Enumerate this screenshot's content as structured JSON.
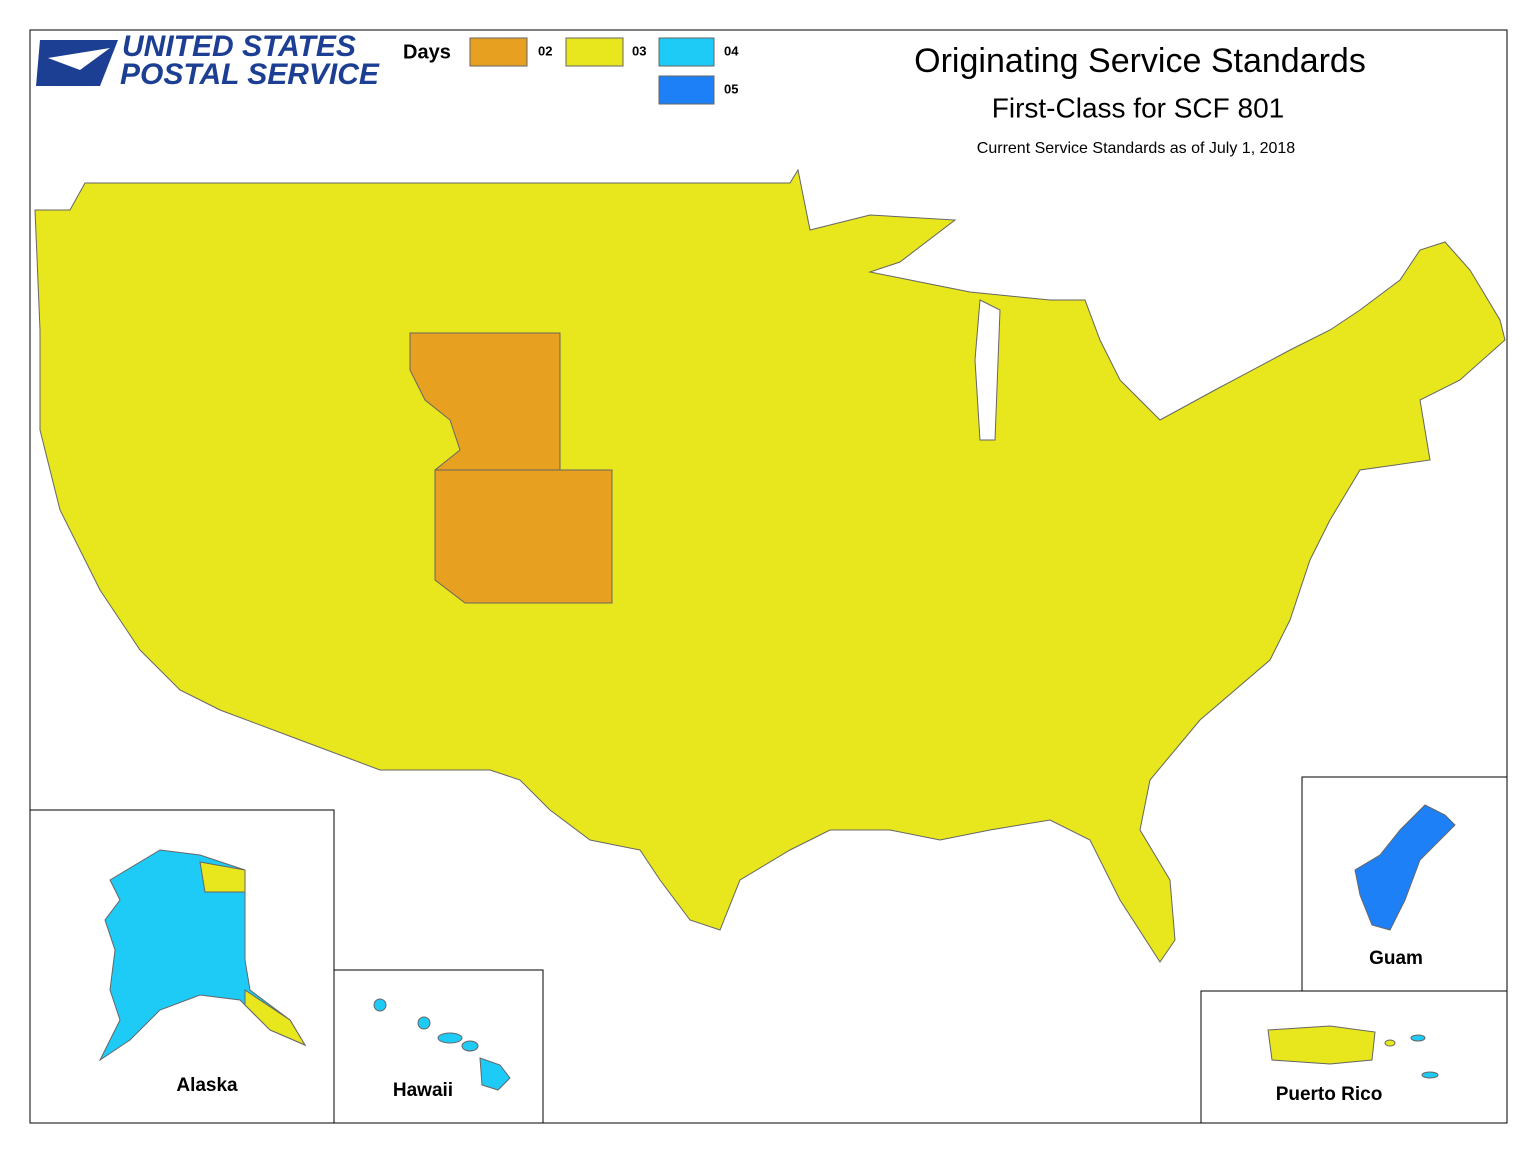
{
  "logo": {
    "line1": "UNITED STATES",
    "line2": "POSTAL SERVICE"
  },
  "header": {
    "title": "Originating Service Standards",
    "subtitle": "First-Class for SCF 801",
    "note": "Current Service Standards as of July 1, 2018"
  },
  "legend": {
    "title": "Days",
    "items": [
      {
        "label": "02",
        "color": "#e8a020"
      },
      {
        "label": "03",
        "color": "#e8e61c"
      },
      {
        "label": "04",
        "color": "#1ecbf7"
      },
      {
        "label": "05",
        "color": "#1e80f7"
      }
    ]
  },
  "insets": {
    "alaska": "Alaska",
    "hawaii": "Hawaii",
    "guam": "Guam",
    "puerto_rico": "Puerto Rico"
  }
}
